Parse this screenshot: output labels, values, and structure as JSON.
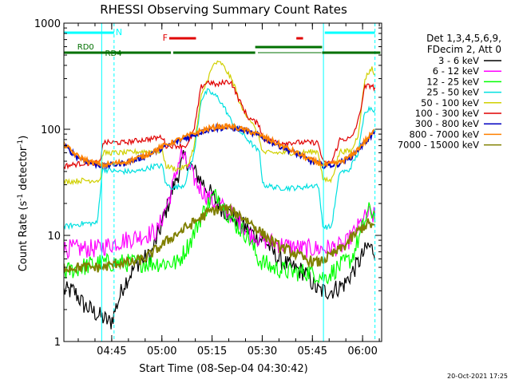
{
  "chart_data": {
    "type": "line",
    "title": "RHESSI Observing Summary Count Rates",
    "xlabel": "Start Time (08-Sep-04 04:30:42)",
    "ylabel_main": "Count Rate (s",
    "ylabel_sup1": "-1",
    "ylabel_mid": " detector",
    "ylabel_sup2": "-1",
    "ylabel_end": ")",
    "y_scale": "log",
    "ylim": [
      1,
      1000
    ],
    "xlim_minutes": [
      0,
      95
    ],
    "x_ticks": [
      {
        "label": "04:45",
        "minutes": 14.3
      },
      {
        "label": "05:00",
        "minutes": 29.3
      },
      {
        "label": "05:15",
        "minutes": 44.3
      },
      {
        "label": "05:30",
        "minutes": 59.3
      },
      {
        "label": "05:45",
        "minutes": 74.3
      },
      {
        "label": "06:00",
        "minutes": 89.3
      }
    ],
    "y_ticks": [
      {
        "label": "1",
        "value": 1
      },
      {
        "label": "10",
        "value": 10
      },
      {
        "label": "100",
        "value": 100
      },
      {
        "label": "1000",
        "value": 1000
      }
    ],
    "legend_header": [
      "Det 1,3,4,5,6,9,",
      "FDecim 2, Att 0"
    ],
    "annotations": {
      "night_label": "N",
      "flare_label": "F",
      "rd0_label": "RD0",
      "rd4_label": "RD4"
    },
    "footer_date": "20-Oct-2021 17:25",
    "colors": {
      "night": "#00ffff",
      "flare": "#e00000",
      "rd": "#007000"
    },
    "series": [
      {
        "name": "3 - 6 keV",
        "color": "#000000",
        "points": [
          [
            0,
            3
          ],
          [
            3,
            3
          ],
          [
            6,
            2.2
          ],
          [
            10,
            1.8
          ],
          [
            14,
            1.5
          ],
          [
            18,
            3.5
          ],
          [
            22,
            5.5
          ],
          [
            26,
            6.5
          ],
          [
            29,
            12
          ],
          [
            33,
            30
          ],
          [
            36,
            55
          ],
          [
            39,
            40
          ],
          [
            42,
            30
          ],
          [
            45,
            22
          ],
          [
            48,
            17
          ],
          [
            51,
            15
          ],
          [
            54,
            12
          ],
          [
            57,
            10
          ],
          [
            60,
            9
          ],
          [
            64,
            6
          ],
          [
            68,
            5
          ],
          [
            72,
            4.5
          ],
          [
            76,
            3
          ],
          [
            80,
            3
          ],
          [
            84,
            3.5
          ],
          [
            88,
            5.5
          ],
          [
            91,
            8
          ],
          [
            93,
            7
          ]
        ]
      },
      {
        "name": "6 - 12 keV",
        "color": "#ff00ff",
        "points": [
          [
            0,
            7.5
          ],
          [
            10,
            7.5
          ],
          [
            18,
            9
          ],
          [
            24,
            10
          ],
          [
            28,
            11
          ],
          [
            32,
            25
          ],
          [
            35,
            60
          ],
          [
            37,
            45
          ],
          [
            40,
            30
          ],
          [
            42,
            25
          ],
          [
            45,
            20
          ],
          [
            48,
            18
          ],
          [
            52,
            14
          ],
          [
            56,
            10
          ],
          [
            60,
            9
          ],
          [
            66,
            8
          ],
          [
            72,
            7.5
          ],
          [
            78,
            7.5
          ],
          [
            84,
            8
          ],
          [
            88,
            12
          ],
          [
            91,
            16
          ],
          [
            93,
            15
          ]
        ]
      },
      {
        "name": "12 - 25 keV",
        "color": "#00ff00",
        "points": [
          [
            0,
            4.5
          ],
          [
            10,
            5.5
          ],
          [
            20,
            5.5
          ],
          [
            28,
            5.5
          ],
          [
            34,
            5.5
          ],
          [
            38,
            9
          ],
          [
            41,
            15
          ],
          [
            44,
            22
          ],
          [
            46,
            24
          ],
          [
            49,
            16
          ],
          [
            52,
            12
          ],
          [
            55,
            10
          ],
          [
            58,
            6
          ],
          [
            62,
            5
          ],
          [
            68,
            4.5
          ],
          [
            74,
            4.5
          ],
          [
            78,
            4
          ],
          [
            82,
            5
          ],
          [
            86,
            6
          ],
          [
            89,
            11
          ],
          [
            91,
            17
          ],
          [
            93,
            16
          ]
        ]
      },
      {
        "name": "25 - 50 keV",
        "color": "#00e0e0",
        "points": [
          [
            0,
            12
          ],
          [
            6,
            13
          ],
          [
            10,
            13
          ],
          [
            11.5,
            42
          ],
          [
            16,
            40
          ],
          [
            22,
            40
          ],
          [
            27,
            45
          ],
          [
            29.5,
            45
          ],
          [
            30.5,
            30
          ],
          [
            33,
            28
          ],
          [
            36,
            30
          ],
          [
            39,
            60
          ],
          [
            41,
            190
          ],
          [
            43,
            230
          ],
          [
            46,
            200
          ],
          [
            48,
            160
          ],
          [
            50,
            120
          ],
          [
            52,
            100
          ],
          [
            55,
            80
          ],
          [
            58.5,
            60
          ],
          [
            59.5,
            30
          ],
          [
            64,
            28
          ],
          [
            70,
            28
          ],
          [
            76,
            30
          ],
          [
            77.5,
            12
          ],
          [
            80,
            12
          ],
          [
            82.5,
            40
          ],
          [
            85,
            40
          ],
          [
            88,
            60
          ],
          [
            90,
            150
          ],
          [
            92,
            160
          ],
          [
            93,
            150
          ]
        ]
      },
      {
        "name": "50 - 100 keV",
        "color": "#d0d000",
        "points": [
          [
            0,
            32
          ],
          [
            6,
            33
          ],
          [
            11,
            33
          ],
          [
            11.5,
            60
          ],
          [
            18,
            60
          ],
          [
            24,
            62
          ],
          [
            27,
            62
          ],
          [
            29.5,
            62
          ],
          [
            30.5,
            45
          ],
          [
            34,
            42
          ],
          [
            37,
            45
          ],
          [
            39,
            70
          ],
          [
            41,
            200
          ],
          [
            43,
            300
          ],
          [
            45,
            420
          ],
          [
            47,
            420
          ],
          [
            49,
            340
          ],
          [
            51,
            260
          ],
          [
            53,
            160
          ],
          [
            56,
            120
          ],
          [
            58.5,
            80
          ],
          [
            59.5,
            60
          ],
          [
            64,
            60
          ],
          [
            70,
            60
          ],
          [
            76,
            62
          ],
          [
            77.5,
            33
          ],
          [
            80,
            33
          ],
          [
            82.5,
            62
          ],
          [
            86,
            62
          ],
          [
            88,
            90
          ],
          [
            90,
            300
          ],
          [
            92,
            380
          ],
          [
            93,
            320
          ]
        ]
      },
      {
        "name": "100 - 300 keV",
        "color": "#e00000",
        "points": [
          [
            0,
            45
          ],
          [
            6,
            48
          ],
          [
            11,
            48
          ],
          [
            11.5,
            75
          ],
          [
            18,
            75
          ],
          [
            24,
            80
          ],
          [
            27,
            82
          ],
          [
            29.5,
            85
          ],
          [
            30.5,
            70
          ],
          [
            34,
            70
          ],
          [
            37,
            70
          ],
          [
            39,
            100
          ],
          [
            41,
            250
          ],
          [
            43,
            280
          ],
          [
            46,
            260
          ],
          [
            48,
            280
          ],
          [
            50,
            280
          ],
          [
            52,
            200
          ],
          [
            55,
            130
          ],
          [
            58.5,
            110
          ],
          [
            59.5,
            80
          ],
          [
            64,
            75
          ],
          [
            70,
            75
          ],
          [
            76,
            75
          ],
          [
            77.5,
            48
          ],
          [
            80,
            48
          ],
          [
            82.5,
            80
          ],
          [
            86,
            82
          ],
          [
            88,
            120
          ],
          [
            90,
            250
          ],
          [
            92,
            260
          ],
          [
            93,
            240
          ]
        ]
      },
      {
        "name": "300 - 800 keV",
        "color": "#0000c0",
        "points": [
          [
            0,
            70
          ],
          [
            4,
            55
          ],
          [
            8,
            48
          ],
          [
            12,
            45
          ],
          [
            18,
            48
          ],
          [
            24,
            55
          ],
          [
            30,
            68
          ],
          [
            36,
            82
          ],
          [
            42,
            97
          ],
          [
            46,
            103
          ],
          [
            50,
            103
          ],
          [
            54,
            97
          ],
          [
            58,
            88
          ],
          [
            62,
            76
          ],
          [
            66,
            66
          ],
          [
            70,
            58
          ],
          [
            74,
            50
          ],
          [
            78,
            45
          ],
          [
            82,
            47
          ],
          [
            86,
            55
          ],
          [
            90,
            75
          ],
          [
            93,
            95
          ]
        ]
      },
      {
        "name": "800 - 7000 keV",
        "color": "#ff8000",
        "points": [
          [
            0,
            72
          ],
          [
            4,
            56
          ],
          [
            8,
            49
          ],
          [
            12,
            46
          ],
          [
            18,
            49
          ],
          [
            24,
            56
          ],
          [
            30,
            70
          ],
          [
            36,
            84
          ],
          [
            42,
            99
          ],
          [
            46,
            106
          ],
          [
            50,
            106
          ],
          [
            54,
            99
          ],
          [
            58,
            90
          ],
          [
            62,
            78
          ],
          [
            66,
            68
          ],
          [
            70,
            59
          ],
          [
            74,
            51
          ],
          [
            78,
            46
          ],
          [
            82,
            48
          ],
          [
            86,
            56
          ],
          [
            90,
            77
          ],
          [
            93,
            98
          ]
        ]
      },
      {
        "name": "7000 - 15000 keV",
        "color": "#808000",
        "points": [
          [
            0,
            5
          ],
          [
            4,
            5
          ],
          [
            8,
            5
          ],
          [
            12,
            5
          ],
          [
            16,
            5.5
          ],
          [
            20,
            5.5
          ],
          [
            24,
            6
          ],
          [
            28,
            7.5
          ],
          [
            32,
            9.5
          ],
          [
            36,
            11.5
          ],
          [
            40,
            14
          ],
          [
            44,
            17
          ],
          [
            48,
            18
          ],
          [
            52,
            16
          ],
          [
            56,
            13
          ],
          [
            60,
            10
          ],
          [
            64,
            8
          ],
          [
            68,
            7
          ],
          [
            72,
            6
          ],
          [
            76,
            5.5
          ],
          [
            80,
            6.5
          ],
          [
            84,
            8
          ],
          [
            88,
            11
          ],
          [
            91,
            13
          ],
          [
            93,
            12
          ]
        ]
      }
    ]
  }
}
